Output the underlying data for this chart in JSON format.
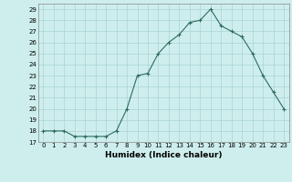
{
  "x": [
    0,
    1,
    2,
    3,
    4,
    5,
    6,
    7,
    8,
    9,
    10,
    11,
    12,
    13,
    14,
    15,
    16,
    17,
    18,
    19,
    20,
    21,
    22,
    23
  ],
  "y": [
    18,
    18,
    18,
    17.5,
    17.5,
    17.5,
    17.5,
    18,
    20,
    23,
    23.2,
    25,
    26,
    26.7,
    27.8,
    28.0,
    29.0,
    27.5,
    27.0,
    26.5,
    25.0,
    23.0,
    21.5,
    20.0
  ],
  "line_color": "#2e6b5e",
  "marker": "+",
  "marker_size": 3,
  "marker_lw": 0.8,
  "line_width": 0.8,
  "bg_color": "#ceeeed",
  "grid_color": "#a8d4d2",
  "xlabel": "Humidex (Indice chaleur)",
  "ylabel": "",
  "xlim": [
    -0.5,
    23.5
  ],
  "ylim": [
    17,
    29.5
  ],
  "yticks": [
    17,
    18,
    19,
    20,
    21,
    22,
    23,
    24,
    25,
    26,
    27,
    28,
    29
  ],
  "xticks": [
    0,
    1,
    2,
    3,
    4,
    5,
    6,
    7,
    8,
    9,
    10,
    11,
    12,
    13,
    14,
    15,
    16,
    17,
    18,
    19,
    20,
    21,
    22,
    23
  ],
  "label_fontsize": 6.5,
  "tick_fontsize": 5.0
}
